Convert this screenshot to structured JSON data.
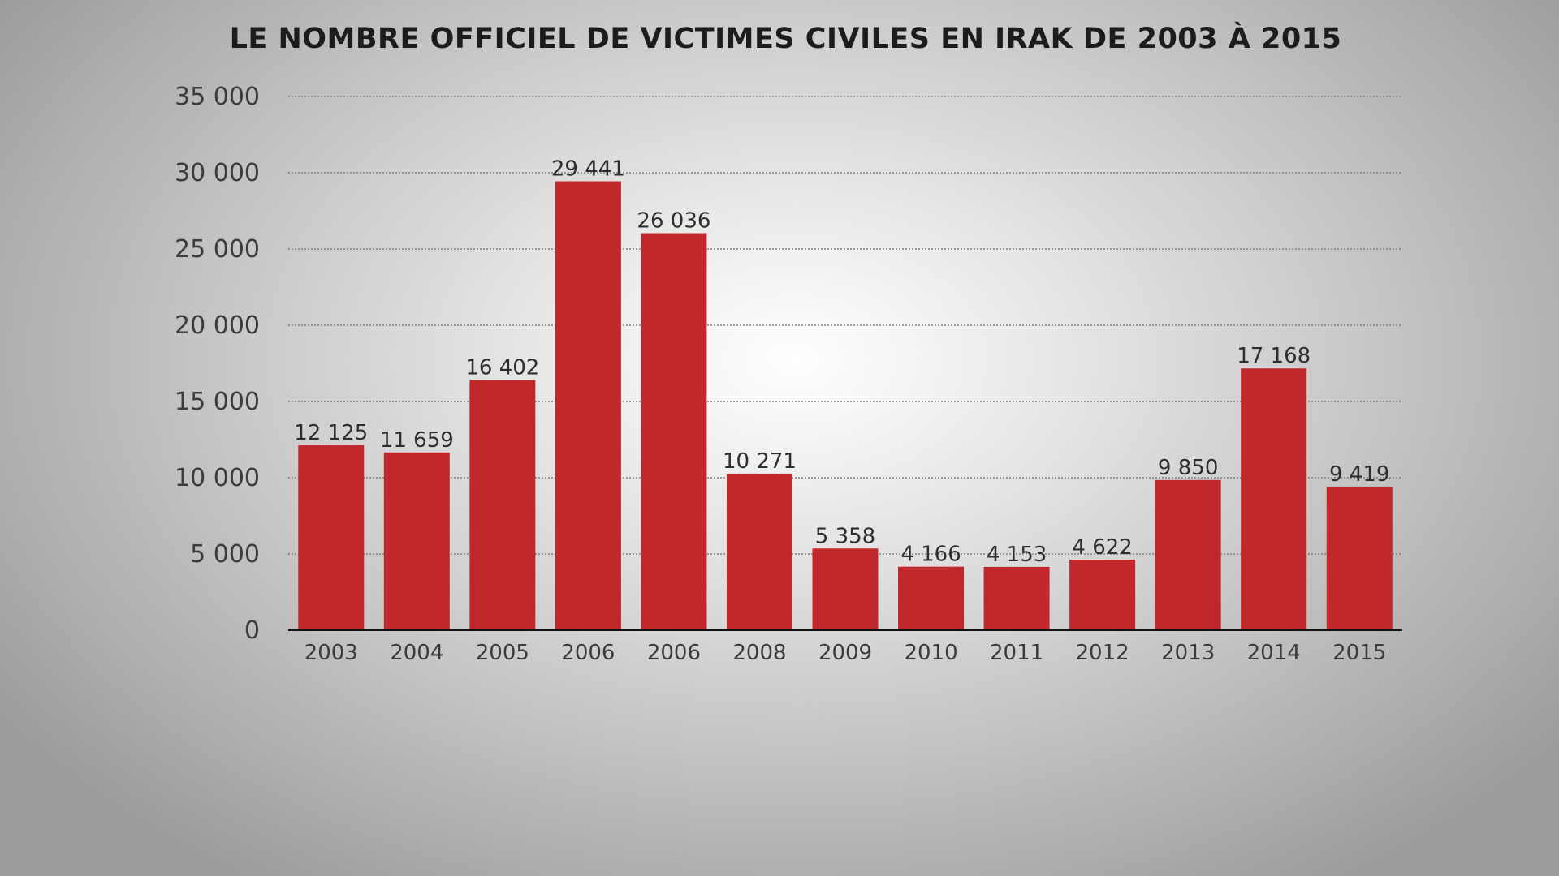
{
  "chart_data": {
    "type": "bar",
    "title": "LE NOMBRE OFFICIEL DE VICTIMES CIVILES EN IRAK DE 2003 À 2015",
    "xlabel": "",
    "ylabel": "",
    "categories": [
      "2003",
      "2004",
      "2005",
      "2006",
      "2006",
      "2008",
      "2009",
      "2010",
      "2011",
      "2012",
      "2013",
      "2014",
      "2015"
    ],
    "values": [
      12125,
      11659,
      16402,
      29441,
      26036,
      10271,
      5358,
      4166,
      4153,
      4622,
      9850,
      17168,
      9419
    ],
    "value_labels": [
      "12 125",
      "11 659",
      "16 402",
      "29 441",
      "26 036",
      "10 271",
      "5 358",
      "4 166",
      "4 153",
      "4 622",
      "9 850",
      "17 168",
      "9 419"
    ],
    "yticks": [
      0,
      5000,
      10000,
      15000,
      20000,
      25000,
      30000,
      35000
    ],
    "ytick_labels": [
      "0",
      "5 000",
      "10 000",
      "15 000",
      "20 000",
      "25 000",
      "30 000",
      "35 000"
    ],
    "ylim": [
      0,
      35000
    ],
    "grid": true,
    "legend": "none",
    "colors": {
      "bar": "#c0282b",
      "grid": "#6e6e6e",
      "axis": "#111111"
    }
  }
}
